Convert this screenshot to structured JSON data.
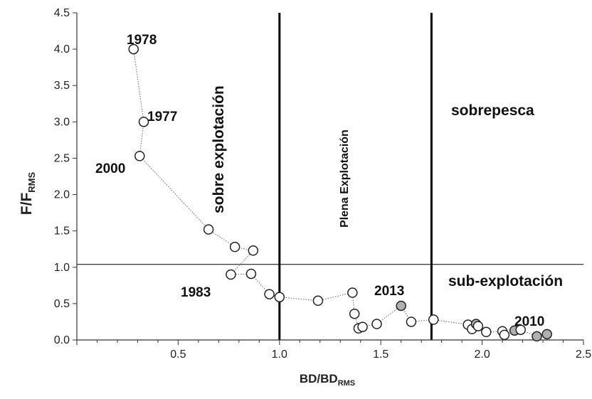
{
  "chart_data": {
    "type": "scatter",
    "title": "",
    "xlabel": "BD/BD",
    "xlabel_sub": "RMS",
    "ylabel": "F/F",
    "ylabel_sub": "RMS",
    "xlim": [
      0,
      2.5
    ],
    "ylim": [
      0,
      4.5
    ],
    "x_ticks": [
      "0.5",
      "1.0",
      "1.5",
      "2.0",
      "2.5"
    ],
    "y_ticks": [
      "0.0",
      "0.5",
      "1.0",
      "1.5",
      "2.0",
      "2.5",
      "3.0",
      "3.5",
      "4.0",
      "4.5"
    ],
    "reference_lines": {
      "vertical": [
        1.0,
        1.75
      ],
      "horizontal": [
        1.04
      ]
    },
    "region_labels": [
      "sobre explotación",
      "Plena Explotación",
      "sobrepesca",
      "sub-explotación"
    ],
    "year_labels": [
      "1978",
      "1977",
      "2000",
      "1983",
      "2013",
      "2010"
    ],
    "colors": {
      "open_marker": "#ffffff",
      "filled_marker": "#b0b0b0",
      "line": "#666666",
      "ref_line": "#000000"
    },
    "series": [
      {
        "points": [
          {
            "x": 0.28,
            "y": 4.0
          },
          {
            "x": 0.33,
            "y": 3.0
          },
          {
            "x": 0.31,
            "y": 2.53
          },
          {
            "x": 0.65,
            "y": 1.52
          },
          {
            "x": 0.78,
            "y": 1.28
          },
          {
            "x": 0.87,
            "y": 1.23
          },
          {
            "x": 0.76,
            "y": 0.9
          },
          {
            "x": 0.86,
            "y": 0.91
          },
          {
            "x": 0.95,
            "y": 0.63
          },
          {
            "x": 1.0,
            "y": 0.59
          },
          {
            "x": 1.19,
            "y": 0.54
          },
          {
            "x": 1.36,
            "y": 0.65
          },
          {
            "x": 1.37,
            "y": 0.36
          },
          {
            "x": 1.39,
            "y": 0.16
          },
          {
            "x": 1.41,
            "y": 0.18
          },
          {
            "x": 1.48,
            "y": 0.22
          },
          {
            "x": 1.6,
            "y": 0.47,
            "filled": true
          },
          {
            "x": 1.65,
            "y": 0.25
          },
          {
            "x": 1.76,
            "y": 0.28
          },
          {
            "x": 1.93,
            "y": 0.21
          },
          {
            "x": 1.95,
            "y": 0.15
          },
          {
            "x": 1.97,
            "y": 0.22,
            "filled": true
          },
          {
            "x": 1.98,
            "y": 0.19
          },
          {
            "x": 2.02,
            "y": 0.11
          },
          {
            "x": 2.1,
            "y": 0.12
          },
          {
            "x": 2.11,
            "y": 0.07
          },
          {
            "x": 2.16,
            "y": 0.13,
            "filled": true
          },
          {
            "x": 2.19,
            "y": 0.14
          },
          {
            "x": 2.27,
            "y": 0.05,
            "filled": true
          },
          {
            "x": 2.32,
            "y": 0.08,
            "filled": true
          }
        ]
      }
    ]
  }
}
